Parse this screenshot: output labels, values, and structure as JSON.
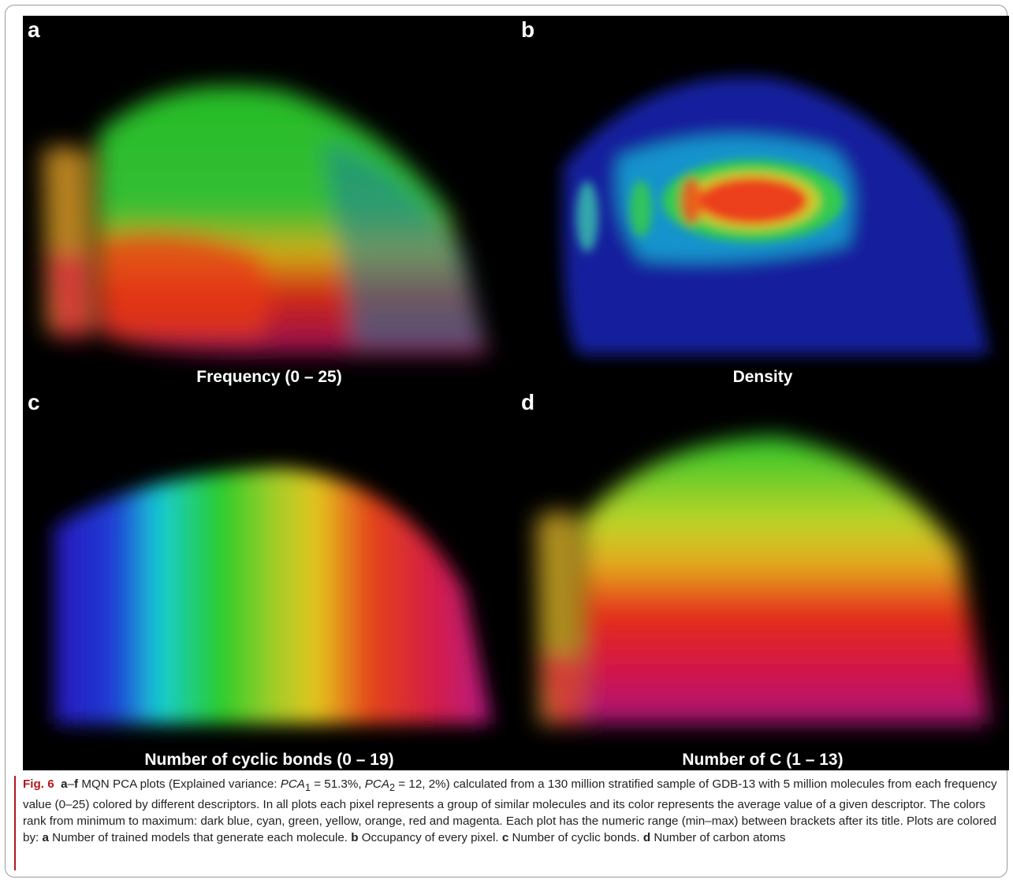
{
  "panels": [
    {
      "letter": "a",
      "title": "Frequency (0 – 25)"
    },
    {
      "letter": "b",
      "title": "Density"
    },
    {
      "letter": "c",
      "title": "Number of cyclic bonds (0 – 19)"
    },
    {
      "letter": "d",
      "title": "Number of C (1 – 13)"
    }
  ],
  "caption": {
    "fig_label": "Fig. 6",
    "range_a": "a",
    "range_dash": "–",
    "range_f": "f",
    "text_1": " MQN PCA plots (Explained variance: ",
    "pca1": "PCA",
    "pca1_sub": "1",
    "pca1_val": " = 51.3%, ",
    "pca2": "PCA",
    "pca2_sub": "2",
    "pca2_val": " = 12, 2%",
    "text_2": ") calculated from a 130 million stratified sample of GDB-13 with 5 million molecules from each frequency value (0–25) colored by different descriptors. In all plots each pixel represents a group of similar molecules and its color represents the average value of a given descriptor. The colors rank from minimum to maximum: dark blue, cyan, green, yellow, orange, red and magenta. Each plot has the numeric range (min–max) between brackets after its title. Plots are colored by: ",
    "a_label": "a",
    "a_text": " Number of trained models that generate each molecule. ",
    "b_label": "b",
    "b_text": " Occupancy of every pixel. ",
    "c_label": "c",
    "c_text": " Number of cyclic bonds. ",
    "d_label": "d",
    "d_text": " Number of carbon atoms"
  },
  "colors": {
    "background": "#000000",
    "fig_label": "#b4161b",
    "scale": [
      "dark blue",
      "cyan",
      "green",
      "yellow",
      "orange",
      "red",
      "magenta"
    ]
  }
}
